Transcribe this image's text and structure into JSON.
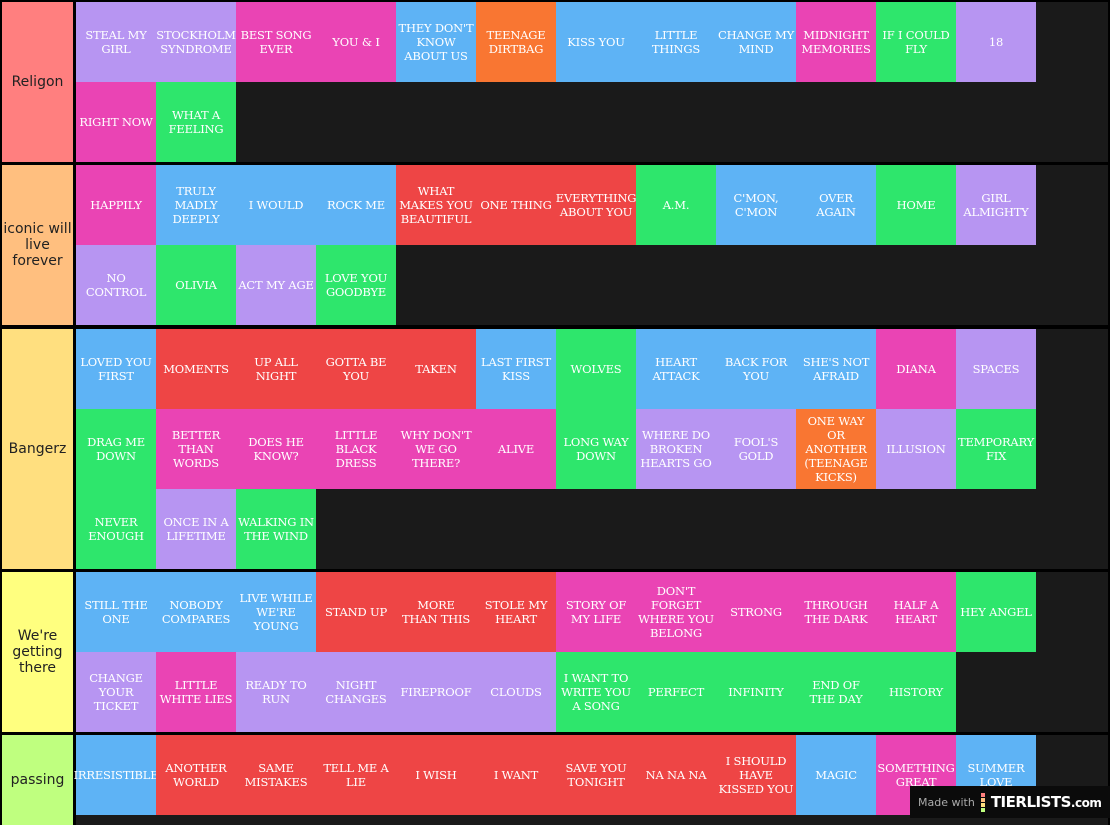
{
  "colors": {
    "P": "#b795f2",
    "K": "#ea44b4",
    "B": "#5eb3f5",
    "O": "#f97632",
    "G": "#2ee66c",
    "R": "#ee4545"
  },
  "tiers": [
    {
      "label": "Religon",
      "color": "#ff7f7f",
      "items": [
        {
          "t": "STEAL MY GIRL",
          "c": "P"
        },
        {
          "t": "STOCKHOLM SYNDROME",
          "c": "P"
        },
        {
          "t": "BEST SONG EVER",
          "c": "K"
        },
        {
          "t": "YOU & I",
          "c": "K"
        },
        {
          "t": "THEY DON'T KNOW ABOUT US",
          "c": "B"
        },
        {
          "t": "TEENAGE DIRTBAG",
          "c": "O"
        },
        {
          "t": "KISS YOU",
          "c": "B"
        },
        {
          "t": "LITTLE THINGS",
          "c": "B"
        },
        {
          "t": "CHANGE MY MIND",
          "c": "B"
        },
        {
          "t": "MIDNIGHT MEMORIES",
          "c": "K"
        },
        {
          "t": "IF I COULD FLY",
          "c": "G"
        },
        {
          "t": "18",
          "c": "P"
        },
        {
          "t": "RIGHT NOW",
          "c": "K"
        },
        {
          "t": "WHAT A FEELING",
          "c": "G"
        }
      ]
    },
    {
      "label": "iconic will live forever",
      "color": "#ffbf7f",
      "items": [
        {
          "t": "HAPPILY",
          "c": "K"
        },
        {
          "t": "TRULY MADLY DEEPLY",
          "c": "B"
        },
        {
          "t": "I WOULD",
          "c": "B"
        },
        {
          "t": "ROCK ME",
          "c": "B"
        },
        {
          "t": "WHAT MAKES YOU BEAUTIFUL",
          "c": "R"
        },
        {
          "t": "ONE THING",
          "c": "R"
        },
        {
          "t": "EVERYTHING ABOUT YOU",
          "c": "R"
        },
        {
          "t": "A.M.",
          "c": "G"
        },
        {
          "t": "C'MON, C'MON",
          "c": "B"
        },
        {
          "t": "OVER AGAIN",
          "c": "B"
        },
        {
          "t": "HOME",
          "c": "G"
        },
        {
          "t": "GIRL ALMIGHTY",
          "c": "P"
        },
        {
          "t": "NO CONTROL",
          "c": "P"
        },
        {
          "t": "OLIVIA",
          "c": "G"
        },
        {
          "t": "ACT MY AGE",
          "c": "P"
        },
        {
          "t": "LOVE YOU GOODBYE",
          "c": "G"
        }
      ]
    },
    {
      "label": "Bangerz",
      "color": "#ffdf7f",
      "items": [
        {
          "t": "LOVED YOU FIRST",
          "c": "B"
        },
        {
          "t": "MOMENTS",
          "c": "R"
        },
        {
          "t": "UP ALL NIGHT",
          "c": "R"
        },
        {
          "t": "GOTTA BE YOU",
          "c": "R"
        },
        {
          "t": "TAKEN",
          "c": "R"
        },
        {
          "t": "LAST FIRST KISS",
          "c": "B"
        },
        {
          "t": "WOLVES",
          "c": "G"
        },
        {
          "t": "HEART ATTACK",
          "c": "B"
        },
        {
          "t": "BACK FOR YOU",
          "c": "B"
        },
        {
          "t": "SHE'S NOT AFRAID",
          "c": "B"
        },
        {
          "t": "DIANA",
          "c": "K"
        },
        {
          "t": "SPACES",
          "c": "P"
        },
        {
          "t": "DRAG ME DOWN",
          "c": "G"
        },
        {
          "t": "BETTER THAN WORDS",
          "c": "K"
        },
        {
          "t": "DOES HE KNOW?",
          "c": "K"
        },
        {
          "t": "LITTLE BLACK DRESS",
          "c": "K"
        },
        {
          "t": "WHY DON'T WE GO THERE?",
          "c": "K"
        },
        {
          "t": "ALIVE",
          "c": "K"
        },
        {
          "t": "LONG WAY DOWN",
          "c": "G"
        },
        {
          "t": "WHERE DO BROKEN HEARTS GO",
          "c": "P"
        },
        {
          "t": "FOOL'S GOLD",
          "c": "P"
        },
        {
          "t": "ONE WAY OR ANOTHER (TEENAGE KICKS)",
          "c": "O"
        },
        {
          "t": "ILLUSION",
          "c": "P"
        },
        {
          "t": "TEMPORARY FIX",
          "c": "G"
        },
        {
          "t": "NEVER ENOUGH",
          "c": "G"
        },
        {
          "t": "ONCE IN A LIFETIME",
          "c": "P"
        },
        {
          "t": "WALKING IN THE WIND",
          "c": "G"
        }
      ]
    },
    {
      "label": "We're getting there",
      "color": "#ffff7f",
      "items": [
        {
          "t": "STILL THE ONE",
          "c": "B"
        },
        {
          "t": "NOBODY COMPARES",
          "c": "B"
        },
        {
          "t": "LIVE WHILE WE'RE YOUNG",
          "c": "B"
        },
        {
          "t": "STAND UP",
          "c": "R"
        },
        {
          "t": "MORE THAN THIS",
          "c": "R"
        },
        {
          "t": "STOLE MY HEART",
          "c": "R"
        },
        {
          "t": "STORY OF MY LIFE",
          "c": "K"
        },
        {
          "t": "DON'T FORGET WHERE YOU BELONG",
          "c": "K"
        },
        {
          "t": "STRONG",
          "c": "K"
        },
        {
          "t": "THROUGH THE DARK",
          "c": "K"
        },
        {
          "t": "HALF A HEART",
          "c": "K"
        },
        {
          "t": "HEY ANGEL",
          "c": "G"
        },
        {
          "t": "CHANGE YOUR TICKET",
          "c": "P"
        },
        {
          "t": "LITTLE WHITE LIES",
          "c": "K"
        },
        {
          "t": "READY TO RUN",
          "c": "P"
        },
        {
          "t": "NIGHT CHANGES",
          "c": "P"
        },
        {
          "t": "FIREPROOF",
          "c": "P"
        },
        {
          "t": "CLOUDS",
          "c": "P"
        },
        {
          "t": "I WANT TO WRITE YOU A SONG",
          "c": "G"
        },
        {
          "t": "PERFECT",
          "c": "G"
        },
        {
          "t": "INFINITY",
          "c": "G"
        },
        {
          "t": "END OF THE DAY",
          "c": "G"
        },
        {
          "t": "HISTORY",
          "c": "G"
        }
      ]
    },
    {
      "label": "passing",
      "color": "#bfff7f",
      "items": [
        {
          "t": "IRRESISTIBLE",
          "c": "B"
        },
        {
          "t": "ANOTHER WORLD",
          "c": "R"
        },
        {
          "t": "SAME MISTAKES",
          "c": "R"
        },
        {
          "t": "TELL ME A LIE",
          "c": "R"
        },
        {
          "t": "I WISH",
          "c": "R"
        },
        {
          "t": "I WANT",
          "c": "R"
        },
        {
          "t": "SAVE YOU TONIGHT",
          "c": "R"
        },
        {
          "t": "NA NA NA",
          "c": "R"
        },
        {
          "t": "I SHOULD HAVE KISSED YOU",
          "c": "R"
        },
        {
          "t": "MAGIC",
          "c": "B"
        },
        {
          "t": "SOMETHING GREAT",
          "c": "K"
        },
        {
          "t": "SUMMER LOVE",
          "c": "B"
        }
      ]
    }
  ],
  "watermark": {
    "made_with": "Made with",
    "logo": "TIERLISTS",
    "logo_suffix": ".com"
  }
}
